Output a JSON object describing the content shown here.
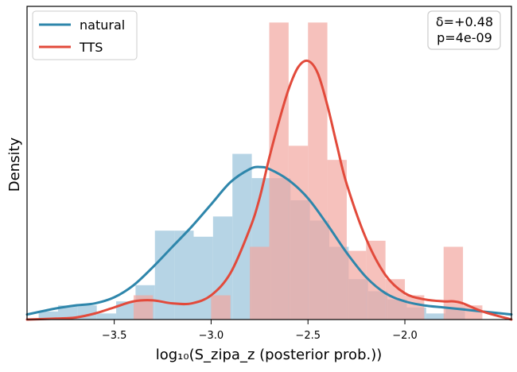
{
  "chart_data": {
    "type": "histogram_kde",
    "xlabel": "log₁₀(S_zipa_z (posterior prob.))",
    "ylabel": "Density",
    "xlim": [
      -3.95,
      -1.45
    ],
    "ylim": [
      0,
      1.55
    ],
    "xticks": [
      -3.5,
      -3.0,
      -2.5,
      -2.0
    ],
    "xtick_labels": [
      "−3.5",
      "−3.0",
      "−2.5",
      "−2.0"
    ],
    "grid": false,
    "legend_position": "top-left",
    "annotation_lines": [
      "δ=+0.48",
      "p=4e-09"
    ],
    "annotation_position": "top-right",
    "series": [
      {
        "name": "natural",
        "color": "#2e86ab",
        "hist_color": "#a9cde0",
        "bin_width": 0.1,
        "bins": [
          {
            "x": -3.84,
            "h": 0.04
          },
          {
            "x": -3.74,
            "h": 0.07
          },
          {
            "x": -3.64,
            "h": 0.07
          },
          {
            "x": -3.54,
            "h": 0.03
          },
          {
            "x": -3.44,
            "h": 0.09
          },
          {
            "x": -3.34,
            "h": 0.17
          },
          {
            "x": -3.24,
            "h": 0.44
          },
          {
            "x": -3.14,
            "h": 0.44
          },
          {
            "x": -3.04,
            "h": 0.41
          },
          {
            "x": -2.94,
            "h": 0.51
          },
          {
            "x": -2.84,
            "h": 0.82
          },
          {
            "x": -2.74,
            "h": 0.7
          },
          {
            "x": -2.64,
            "h": 0.7
          },
          {
            "x": -2.54,
            "h": 0.59
          },
          {
            "x": -2.44,
            "h": 0.49
          },
          {
            "x": -2.34,
            "h": 0.36
          },
          {
            "x": -2.24,
            "h": 0.2
          },
          {
            "x": -2.14,
            "h": 0.14
          },
          {
            "x": -2.04,
            "h": 0.1
          },
          {
            "x": -1.94,
            "h": 0.06
          },
          {
            "x": -1.84,
            "h": 0.03
          },
          {
            "x": -1.74,
            "h": 0.06
          }
        ],
        "kde": {
          "x": [
            -3.95,
            -3.8,
            -3.7,
            -3.6,
            -3.5,
            -3.4,
            -3.3,
            -3.2,
            -3.1,
            -3.0,
            -2.9,
            -2.8,
            -2.75,
            -2.7,
            -2.6,
            -2.5,
            -2.4,
            -2.3,
            -2.2,
            -2.1,
            -2.0,
            -1.9,
            -1.8,
            -1.7,
            -1.6,
            -1.45
          ],
          "y": [
            0.025,
            0.055,
            0.07,
            0.08,
            0.11,
            0.17,
            0.26,
            0.36,
            0.46,
            0.57,
            0.68,
            0.745,
            0.755,
            0.745,
            0.69,
            0.6,
            0.47,
            0.33,
            0.21,
            0.13,
            0.09,
            0.07,
            0.06,
            0.05,
            0.04,
            0.025
          ]
        }
      },
      {
        "name": "TTS",
        "color": "#e24a3b",
        "hist_color": "#f2a6a0",
        "bin_width": 0.1,
        "bins": [
          {
            "x": -3.35,
            "h": 0.12
          },
          {
            "x": -2.95,
            "h": 0.12
          },
          {
            "x": -2.75,
            "h": 0.36
          },
          {
            "x": -2.65,
            "h": 1.47
          },
          {
            "x": -2.55,
            "h": 0.86
          },
          {
            "x": -2.45,
            "h": 1.47
          },
          {
            "x": -2.35,
            "h": 0.79
          },
          {
            "x": -2.25,
            "h": 0.34
          },
          {
            "x": -2.15,
            "h": 0.39
          },
          {
            "x": -2.05,
            "h": 0.2
          },
          {
            "x": -1.95,
            "h": 0.12
          },
          {
            "x": -1.75,
            "h": 0.36
          },
          {
            "x": -1.65,
            "h": 0.07
          }
        ],
        "kde": {
          "x": [
            -3.95,
            -3.8,
            -3.7,
            -3.6,
            -3.5,
            -3.4,
            -3.3,
            -3.2,
            -3.1,
            -3.0,
            -2.9,
            -2.8,
            -2.75,
            -2.7,
            -2.65,
            -2.6,
            -2.55,
            -2.5,
            -2.45,
            -2.4,
            -2.35,
            -2.3,
            -2.2,
            -2.1,
            -2.0,
            -1.9,
            -1.8,
            -1.75,
            -1.7,
            -1.6,
            -1.45
          ],
          "y": [
            0.0,
            0.005,
            0.01,
            0.03,
            0.06,
            0.09,
            0.095,
            0.08,
            0.08,
            0.12,
            0.23,
            0.45,
            0.6,
            0.8,
            0.98,
            1.14,
            1.25,
            1.28,
            1.22,
            1.06,
            0.86,
            0.67,
            0.4,
            0.22,
            0.13,
            0.1,
            0.09,
            0.09,
            0.08,
            0.04,
            0.0
          ]
        }
      }
    ]
  }
}
